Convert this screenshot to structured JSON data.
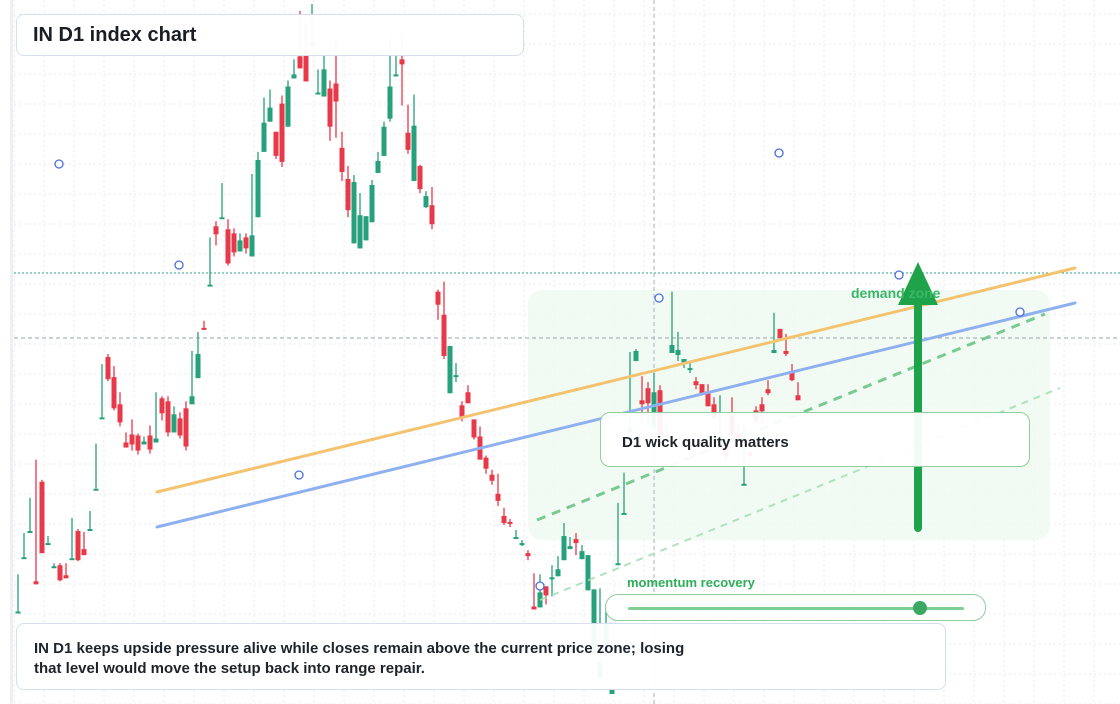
{
  "title": "IN D1 index chart",
  "callout": "D1 wick quality matters",
  "zone_label": "demand zone",
  "momentum": {
    "label": "momentum recovery",
    "level": 0.87
  },
  "note": {
    "line1": "IN D1 keeps upside pressure alive while closes remain above the current price zone; losing",
    "line2": "that level would move the setup back into range repair."
  },
  "colors": {
    "up": "#26a17b",
    "down": "#e8394a",
    "trendline_orange": "#f3c370",
    "trendline_blue": "#8fb0ef",
    "zone": "#eef9ef",
    "arrow": "#1fa34a"
  },
  "chart_data": {
    "type": "candlestick",
    "title": "IN D1 index chart",
    "grid": true,
    "price_range": [
      0,
      700
    ],
    "current_price": 338,
    "reference_level": 273,
    "candles": [
      [
        92,
        92,
        124,
        129
      ],
      [
        146,
        146,
        165,
        170
      ],
      [
        172,
        172,
        193,
        205
      ],
      [
        122,
        119,
        239,
        243
      ],
      [
        221,
        150,
        152,
        223
      ],
      [
        160,
        160,
        163,
        167
      ],
      [
        137,
        137,
        135,
        140
      ],
      [
        138,
        123,
        122,
        140
      ],
      [
        128,
        125,
        136,
        140
      ],
      [
        145,
        145,
        158,
        185
      ],
      [
        172,
        143,
        142,
        174
      ],
      [
        154,
        148,
        157,
        171
      ],
      [
        174,
        174,
        185,
        192
      ],
      [
        214,
        214,
        249,
        259
      ],
      [
        285,
        285,
        338,
        338
      ],
      [
        345,
        323,
        321,
        348
      ],
      [
        325,
        294,
        292,
        336
      ],
      [
        298,
        280,
        276,
        310
      ],
      [
        260,
        255,
        266,
        270
      ],
      [
        268,
        258,
        252,
        283
      ],
      [
        267,
        252,
        248,
        269
      ],
      [
        258,
        261,
        262,
        266
      ],
      [
        267,
        253,
        249,
        277
      ],
      [
        260,
        264,
        305,
        310
      ],
      [
        304,
        289,
        282,
        306
      ],
      [
        301,
        270,
        266,
        306
      ],
      [
        270,
        288,
        288,
        296
      ],
      [
        284,
        267,
        264,
        290
      ],
      [
        294,
        256,
        252,
        301
      ],
      [
        298,
        306,
        345,
        351
      ],
      [
        324,
        348,
        364,
        370
      ],
      [
        374,
        372,
        381,
        381
      ],
      [
        417,
        417,
        460,
        464
      ],
      [
        475,
        467,
        456,
        480
      ],
      [
        484,
        484,
        518,
        518
      ],
      [
        472,
        438,
        436,
        482
      ],
      [
        468,
        449,
        445,
        473
      ],
      [
        450,
        461,
        460,
        468
      ],
      [
        464,
        453,
        448,
        468
      ],
      [
        445,
        466,
        466,
        527
      ],
      [
        484,
        541,
        544,
        549
      ],
      [
        549,
        578,
        594,
        603
      ],
      [
        579,
        593,
        607,
        611
      ],
      [
        569,
        545,
        542,
        567
      ],
      [
        597,
        539,
        534,
        605
      ],
      [
        574,
        614,
        613,
        620
      ],
      [
        622,
        626,
        627,
        641
      ],
      [
        644,
        632,
        636,
        689
      ],
      [
        650,
        619,
        625,
        678
      ],
      [
        654,
        658,
        658,
        696
      ],
      [
        606,
        608,
        624,
        631
      ],
      [
        604,
        631,
        624,
        645
      ],
      [
        612,
        574,
        560,
        620
      ],
      [
        617,
        599,
        563,
        661
      ],
      [
        553,
        529,
        520,
        569
      ],
      [
        522,
        491,
        484,
        535
      ],
      [
        458,
        519,
        522,
        526
      ],
      [
        453,
        486,
        480,
        508
      ],
      [
        461,
        485,
        478,
        461
      ],
      [
        479,
        516,
        517,
        521
      ],
      [
        528,
        540,
        548,
        549
      ],
      [
        545,
        574,
        571,
        579
      ],
      [
        582,
        614,
        579,
        663
      ],
      [
        624,
        626,
        639,
        653
      ],
      [
        641,
        636,
        595,
        665
      ],
      [
        568,
        551,
        547,
        596
      ],
      [
        520,
        575,
        587,
        606
      ],
      [
        535,
        512,
        508,
        536
      ],
      [
        494,
        505,
        493,
        510
      ],
      [
        496,
        477,
        472,
        514
      ],
      [
        410,
        397,
        382,
        412
      ],
      [
        387,
        346,
        343,
        420
      ],
      [
        309,
        356,
        347,
        348
      ],
      [
        326,
        327,
        320,
        339
      ],
      [
        297,
        285,
        281,
        301
      ],
      [
        310,
        299,
        312,
        317
      ],
      [
        283,
        265,
        263,
        282
      ],
      [
        266,
        243,
        243,
        276
      ],
      [
        245,
        234,
        229,
        247
      ],
      [
        228,
        222,
        218,
        233
      ],
      [
        209,
        202,
        197,
        229
      ],
      [
        187,
        180,
        178,
        195
      ],
      [
        181,
        180,
        176,
        184
      ],
      [
        165,
        166,
        166,
        173
      ],
      [
        159,
        160,
        157,
        163
      ],
      [
        150,
        147,
        143,
        153
      ],
      [
        97,
        94,
        94,
        130
      ],
      [
        96,
        111,
        105,
        129
      ],
      [
        117,
        108,
        99,
        114
      ],
      [
        124,
        126,
        107,
        138
      ],
      [
        127,
        134,
        129,
        147
      ],
      [
        143,
        167,
        173,
        180
      ],
      [
        154,
        157,
        165,
        166
      ],
      [
        164,
        160,
        148,
        170
      ],
      [
        144,
        152,
        152,
        158
      ],
      [
        113,
        148,
        143,
        128
      ],
      [
        52,
        114,
        113,
        62
      ],
      [
        26,
        42,
        58,
        115
      ],
      [
        48,
        80,
        82,
        96
      ],
      [
        10,
        16,
        52,
        18
      ],
      [
        138,
        140,
        190,
        200
      ],
      [
        190,
        190,
        224,
        230
      ],
      [
        270,
        274,
        330,
        350
      ],
      [
        341,
        351,
        342,
        353
      ],
      [
        302,
        298,
        280,
        326
      ],
      [
        314,
        299,
        279,
        320
      ],
      [
        275,
        310,
        310,
        329
      ],
      [
        312,
        267,
        269,
        317
      ],
      [
        265,
        267,
        271,
        278
      ],
      [
        349,
        357,
        377,
        410
      ],
      [
        347,
        352,
        341,
        370
      ],
      [
        339,
        343,
        334,
        340
      ],
      [
        333,
        334,
        329,
        340
      ],
      [
        321,
        317,
        313,
        325
      ],
      [
        318,
        309,
        311,
        318
      ],
      [
        311,
        296,
        306,
        318
      ],
      [
        298,
        285,
        284,
        305
      ],
      [
        256,
        262,
        297,
        307
      ],
      [
        254,
        246,
        242,
        256
      ],
      [
        288,
        267,
        262,
        305
      ],
      [
        269,
        262,
        264,
        279
      ],
      [
        217,
        219,
        261,
        276
      ],
      [
        250,
        247,
        246,
        253
      ],
      [
        292,
        282,
        279,
        296
      ],
      [
        298,
        291,
        279,
        305
      ],
      [
        313,
        309,
        307,
        322
      ],
      [
        349,
        352,
        378,
        389
      ],
      [
        373,
        364,
        365,
        368
      ],
      [
        351,
        348,
        346,
        368
      ],
      [
        331,
        322,
        321,
        338
      ],
      [
        307,
        302,
        307,
        320
      ]
    ],
    "trendlines": [
      {
        "color": "orange",
        "from": [
          157,
          492
        ],
        "to": [
          1075,
          268
        ]
      },
      {
        "color": "blue",
        "from": [
          157,
          527
        ],
        "to": [
          1075,
          303
        ]
      },
      {
        "color": "green-dashed",
        "from": [
          537,
          520
        ],
        "to": [
          1045,
          314
        ]
      }
    ]
  }
}
